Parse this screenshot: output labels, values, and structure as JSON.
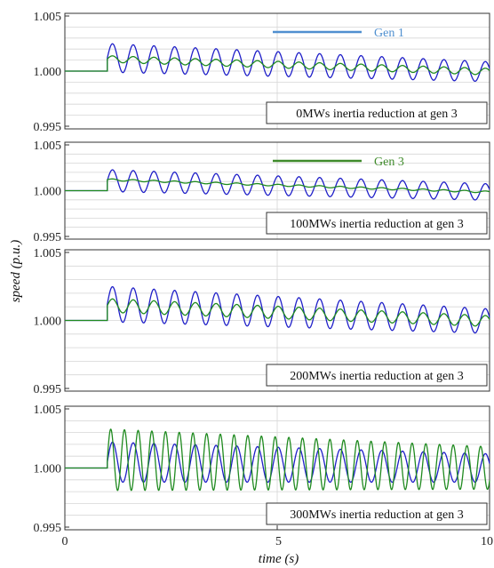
{
  "colors": {
    "gen1": "#1f1fc8",
    "gen3": "#1f8a1f",
    "legend_gen1": "#4f8fcf",
    "legend_gen3": "#3e8a2a"
  },
  "chart_data": {
    "type": "line",
    "xlabel": "time (s)",
    "ylabel": "speed (p.u.)",
    "xlim": [
      0,
      10
    ],
    "x_ticks": [
      "0",
      "5",
      "10"
    ],
    "ylim": [
      0.995,
      1.005
    ],
    "y_ticks": [
      "1.005",
      "1.000",
      "0.995"
    ],
    "y_tick_values": [
      1.005,
      1.0,
      0.995
    ],
    "grid": true,
    "disturbance_time": 1.0,
    "pre_disturbance_speed": 1.0,
    "legend": [
      {
        "label": "Gen 1",
        "panel": 0,
        "color": "#4f8fcf"
      },
      {
        "label": "Gen 3",
        "panel": 1,
        "color": "#3e8a2a"
      }
    ],
    "panels": [
      {
        "annotation": "0MWs inertia reduction at gen 3",
        "series": [
          {
            "name": "Gen 1",
            "color": "#1f1fc8",
            "offset_start": 1.0012,
            "offset_end": 0.99995,
            "amplitude_start": 0.0013,
            "amplitude_end": 0.0009,
            "frequency_hz": 2.05
          },
          {
            "name": "Gen 3",
            "color": "#1f8a1f",
            "offset_start": 1.0011,
            "offset_end": 0.99995,
            "amplitude_start": 0.0003,
            "amplitude_end": 0.0003,
            "frequency_hz": 2.05
          }
        ]
      },
      {
        "annotation": "100MWs inertia reduction at gen 3",
        "series": [
          {
            "name": "Gen 1",
            "color": "#1f1fc8",
            "offset_start": 1.0011,
            "offset_end": 0.99985,
            "amplitude_start": 0.0012,
            "amplitude_end": 0.0009,
            "frequency_hz": 2.05
          },
          {
            "name": "Gen 3",
            "color": "#1f8a1f",
            "offset_start": 1.0012,
            "offset_end": 0.99985,
            "amplitude_start": 0.0001,
            "amplitude_end": 0.0001,
            "frequency_hz": 2.05
          }
        ]
      },
      {
        "annotation": "200MWs inertia reduction at gen 3",
        "series": [
          {
            "name": "Gen 1",
            "color": "#1f1fc8",
            "offset_start": 1.0012,
            "offset_end": 0.99995,
            "amplitude_start": 0.0013,
            "amplitude_end": 0.0009,
            "frequency_hz": 2.05
          },
          {
            "name": "Gen 3",
            "color": "#1f8a1f",
            "offset_start": 1.0011,
            "offset_end": 0.99995,
            "amplitude_start": 0.0005,
            "amplitude_end": 0.0004,
            "frequency_hz": 2.05
          }
        ]
      },
      {
        "annotation": "300MWs inertia reduction at gen 3",
        "series": [
          {
            "name": "Gen 1",
            "color": "#1f1fc8",
            "offset_start": 1.0005,
            "offset_end": 1.0,
            "amplitude_start": 0.0017,
            "amplitude_end": 0.0012,
            "frequency_hz": 2.05
          },
          {
            "name": "Gen 3",
            "color": "#1f8a1f",
            "offset_start": 1.0007,
            "offset_end": 1.0,
            "amplitude_start": 0.0026,
            "amplitude_end": 0.0018,
            "frequency_hz": 3.1
          }
        ]
      }
    ]
  }
}
